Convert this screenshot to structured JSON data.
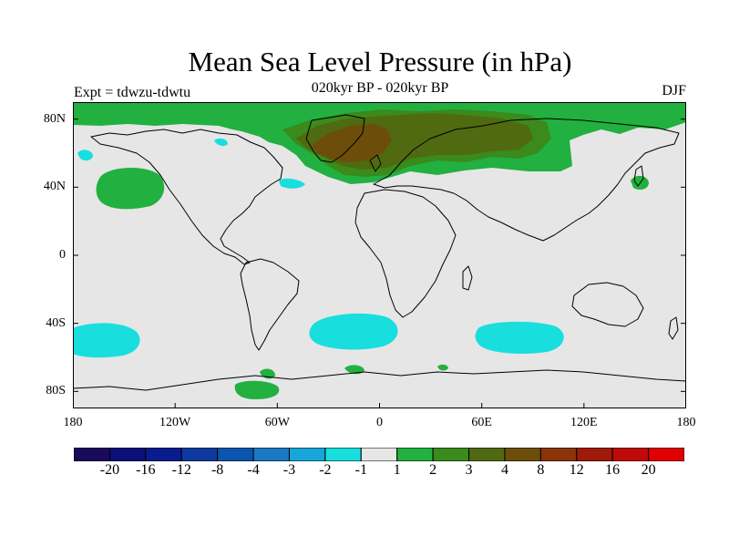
{
  "title": "Mean Sea Level Pressure (in hPa)",
  "subtitle": "020kyr BP - 020kyr BP",
  "experiment": "Expt = tdwzu-tdwtu",
  "season": "DJF",
  "map": {
    "projection": "cylindrical-equidistant",
    "lon_range": [
      -180,
      180
    ],
    "lat_range": [
      -90,
      90
    ],
    "y_ticks": [
      {
        "lat": 80,
        "label": "80N"
      },
      {
        "lat": 40,
        "label": "40N"
      },
      {
        "lat": 0,
        "label": "0"
      },
      {
        "lat": -40,
        "label": "40S"
      },
      {
        "lat": -80,
        "label": "80S"
      }
    ],
    "x_ticks": [
      {
        "lon": -180,
        "label": "180"
      },
      {
        "lon": -120,
        "label": "120W"
      },
      {
        "lon": -60,
        "label": "60W"
      },
      {
        "lon": 0,
        "label": "0"
      },
      {
        "lon": 60,
        "label": "60E"
      },
      {
        "lon": 120,
        "label": "120E"
      },
      {
        "lon": 180,
        "label": "180"
      }
    ],
    "background_color": "#e6e6e6"
  },
  "colorbar": {
    "colors": [
      "#1a0a5a",
      "#0a0f7a",
      "#081c8e",
      "#0e3aa0",
      "#0a55ad",
      "#1a78c4",
      "#18a6d8",
      "#18dede",
      "#e6e6e6",
      "#22b040",
      "#3a8a1c",
      "#4f6a10",
      "#6c4e0a",
      "#8a3408",
      "#a01a0a",
      "#c00a0a",
      "#e00000"
    ],
    "labels": [
      "-20",
      "-16",
      "-12",
      "-8",
      "-4",
      "-3",
      "-2",
      "-1",
      "1",
      "2",
      "3",
      "4",
      "8",
      "12",
      "16",
      "20"
    ]
  }
}
